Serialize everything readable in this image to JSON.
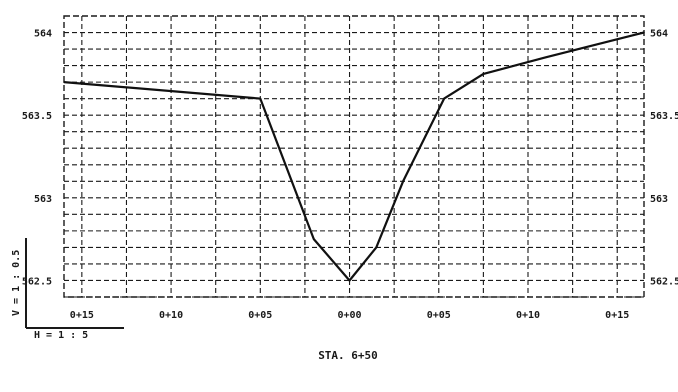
{
  "chart_data": {
    "type": "line",
    "title": "STA. 6+50",
    "x_tick_labels": [
      "0+15",
      "0+10",
      "0+05",
      "0+00",
      "0+05",
      "0+10",
      "0+15"
    ],
    "x_tick_values": [
      -15,
      -10,
      -5,
      0,
      5,
      10,
      15
    ],
    "y_tick_labels_left": [
      "564",
      "563.5",
      "563",
      "562.5"
    ],
    "y_tick_labels_right": [
      "564",
      "563.5",
      "563",
      "562.5"
    ],
    "y_tick_values": [
      564,
      563.5,
      563,
      562.5
    ],
    "xlim": [
      -16,
      16.5
    ],
    "ylim": [
      562.4,
      564.1
    ],
    "grid": true,
    "scale_vertical": "V = 1 : 0.5",
    "scale_horizontal": "H = 1 : 5",
    "series": [
      {
        "x": [
          -16,
          -5,
          -2,
          0,
          1.5,
          3,
          5.3,
          7.5,
          11,
          16.5
        ],
        "y": [
          563.7,
          563.6,
          562.75,
          562.5,
          562.7,
          563.1,
          563.6,
          563.75,
          563.85,
          564.0
        ]
      }
    ]
  }
}
